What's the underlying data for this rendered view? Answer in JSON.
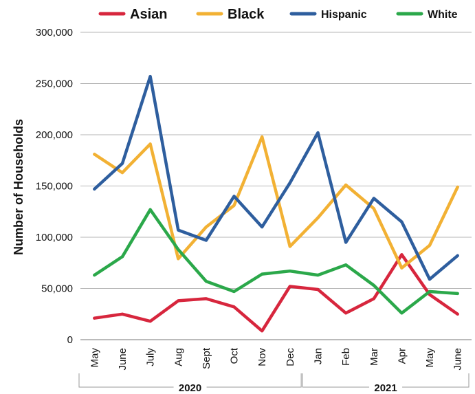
{
  "chart_data": {
    "type": "line",
    "title": "",
    "ylabel": "Number of Households",
    "xlabel": "",
    "ylim": [
      0,
      300000
    ],
    "y_ticks": [
      0,
      50000,
      100000,
      150000,
      200000,
      250000,
      300000
    ],
    "y_tick_labels": [
      "0",
      "50,000",
      "100,000",
      "150,000",
      "200,000",
      "250,000",
      "300,000"
    ],
    "grid": "horizontal",
    "legend_position": "top",
    "categories": [
      "May",
      "June",
      "July",
      "Aug",
      "Sept",
      "Oct",
      "Nov",
      "Dec",
      "Jan",
      "Feb",
      "Mar",
      "Apr",
      "May",
      "June"
    ],
    "year_groups": [
      {
        "label": "2020",
        "start": 0,
        "end": 7
      },
      {
        "label": "2021",
        "start": 8,
        "end": 13
      }
    ],
    "series": [
      {
        "name": "Asian",
        "color": "#d7263d",
        "legend_size": 20,
        "values": [
          21000,
          25000,
          18000,
          38000,
          40000,
          32000,
          8500,
          52000,
          49000,
          26000,
          40000,
          83000,
          44000,
          25000
        ]
      },
      {
        "name": "Black",
        "color": "#f2b134",
        "legend_size": 20,
        "values": [
          181000,
          163000,
          191000,
          79000,
          110000,
          131000,
          198000,
          91000,
          119000,
          151000,
          128000,
          70000,
          92000,
          149000
        ]
      },
      {
        "name": "Hispanic",
        "color": "#2e5e9e",
        "legend_size": 16,
        "values": [
          147000,
          172000,
          257000,
          107000,
          97000,
          140000,
          110000,
          153000,
          202000,
          95000,
          138000,
          115000,
          59000,
          82000
        ]
      },
      {
        "name": "White",
        "color": "#2ba84a",
        "legend_size": 16,
        "values": [
          63000,
          81000,
          127000,
          88000,
          57000,
          47000,
          64000,
          67000,
          63000,
          73000,
          53000,
          26000,
          47000,
          45000
        ]
      }
    ]
  }
}
